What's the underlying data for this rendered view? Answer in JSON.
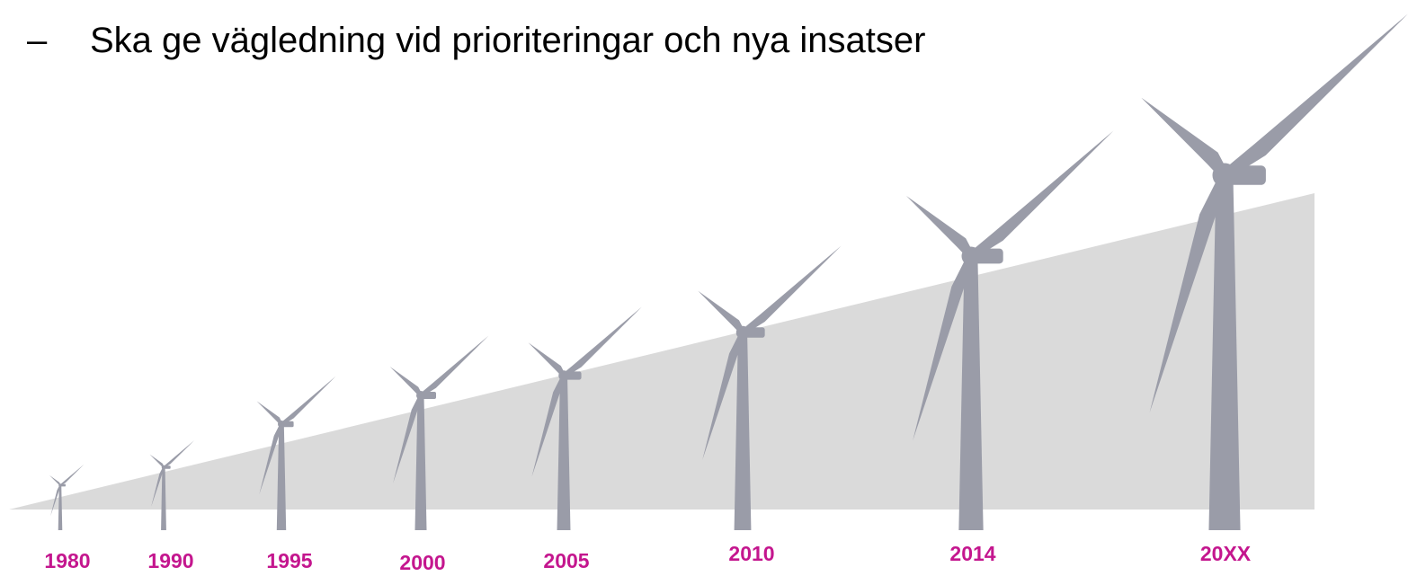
{
  "bullet": {
    "marker": "–",
    "text": "Ska ge vägledning vid prioriteringar och nya insatser"
  },
  "timeline": {
    "labels": [
      "1980",
      "1990",
      "1995",
      "2000",
      "2005",
      "2010",
      "2014",
      "20XX"
    ]
  }
}
